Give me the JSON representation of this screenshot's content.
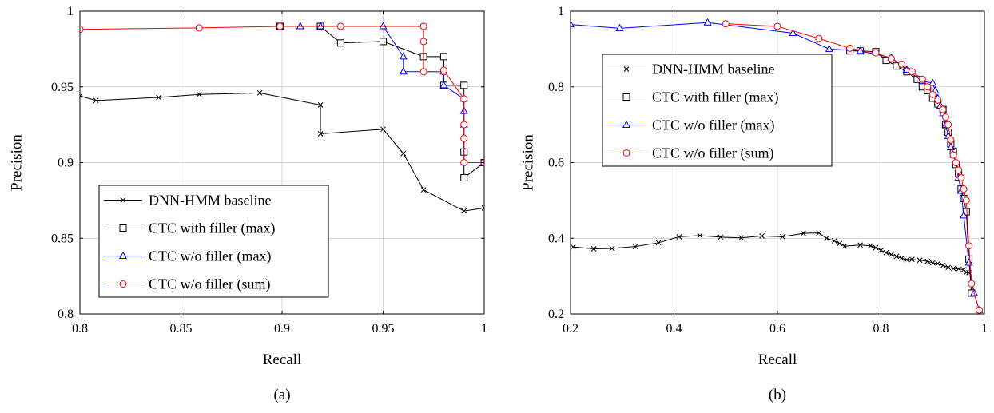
{
  "chart_data": [
    {
      "type": "line",
      "caption": "(a)",
      "xlabel": "Recall",
      "ylabel": "Precision",
      "xlim": [
        0.8,
        1.0
      ],
      "ylim": [
        0.8,
        1.0
      ],
      "xticks": [
        0.8,
        0.85,
        0.9,
        0.95,
        1.0
      ],
      "xtick_labels": [
        "0.8",
        "0.85",
        "0.9",
        "0.95",
        "1"
      ],
      "yticks": [
        0.8,
        0.85,
        0.9,
        0.95,
        1.0
      ],
      "ytick_labels": [
        "0.8",
        "0.85",
        "0.9",
        "0.95",
        "1"
      ],
      "grid": true,
      "legend_position": "bottom-left",
      "series": [
        {
          "name": "DNN-HMM baseline",
          "color": "#000000",
          "marker": "x",
          "x": [
            0.8,
            0.808,
            0.839,
            0.859,
            0.889,
            0.919,
            0.919,
            0.95,
            0.96,
            0.97,
            0.99,
            1.0
          ],
          "y": [
            0.944,
            0.941,
            0.943,
            0.945,
            0.946,
            0.938,
            0.919,
            0.922,
            0.906,
            0.882,
            0.868,
            0.87
          ]
        },
        {
          "name": "CTC with filler (max)",
          "color": "#000000",
          "marker": "square",
          "x": [
            0.899,
            0.919,
            0.929,
            0.95,
            0.97,
            0.98,
            0.98,
            0.99,
            0.99,
            0.99,
            1.0
          ],
          "y": [
            0.99,
            0.99,
            0.979,
            0.98,
            0.97,
            0.97,
            0.951,
            0.951,
            0.907,
            0.89,
            0.9
          ]
        },
        {
          "name": "CTC w/o filler (max)",
          "color": "#0000ff",
          "marker": "triangle",
          "x": [
            0.899,
            0.909,
            0.919,
            0.95,
            0.96,
            0.96,
            0.98,
            0.98,
            0.99,
            0.99,
            0.99,
            0.99,
            1.0
          ],
          "y": [
            0.99,
            0.99,
            0.99,
            0.99,
            0.97,
            0.96,
            0.96,
            0.951,
            0.942,
            0.934,
            0.925,
            0.9,
            0.9
          ]
        },
        {
          "name": "CTC w/o filler (sum)",
          "color": "#ff0000",
          "marker": "circle",
          "x": [
            0.8,
            0.859,
            0.899,
            0.929,
            0.97,
            0.97,
            0.97,
            0.98,
            0.98,
            0.99,
            0.99,
            0.99,
            0.99,
            1.0
          ],
          "y": [
            0.988,
            0.989,
            0.99,
            0.99,
            0.99,
            0.98,
            0.96,
            0.96,
            0.961,
            0.942,
            0.925,
            0.916,
            0.9,
            0.9
          ]
        }
      ]
    },
    {
      "type": "line",
      "caption": "(b)",
      "xlabel": "Recall",
      "ylabel": "Precision",
      "xlim": [
        0.2,
        1.0
      ],
      "ylim": [
        0.2,
        1.0
      ],
      "xticks": [
        0.2,
        0.4,
        0.6,
        0.8,
        1.0
      ],
      "xtick_labels": [
        "0.2",
        "0.4",
        "0.6",
        "0.8",
        "1"
      ],
      "yticks": [
        0.2,
        0.4,
        0.6,
        0.8,
        1.0
      ],
      "ytick_labels": [
        "0.2",
        "0.4",
        "0.6",
        "0.8",
        "1"
      ],
      "grid": true,
      "legend_position": "top-left",
      "series": [
        {
          "name": "DNN-HMM baseline",
          "color": "#000000",
          "marker": "x",
          "x": [
            0.205,
            0.245,
            0.28,
            0.325,
            0.37,
            0.41,
            0.45,
            0.49,
            0.53,
            0.57,
            0.61,
            0.65,
            0.68,
            0.695,
            0.71,
            0.72,
            0.73,
            0.76,
            0.78,
            0.79,
            0.8,
            0.81,
            0.82,
            0.83,
            0.84,
            0.85,
            0.86,
            0.875,
            0.89,
            0.9,
            0.91,
            0.92,
            0.93,
            0.94,
            0.95,
            0.96,
            0.965,
            0.97
          ],
          "y": [
            0.377,
            0.372,
            0.373,
            0.378,
            0.388,
            0.404,
            0.407,
            0.403,
            0.401,
            0.406,
            0.404,
            0.413,
            0.414,
            0.4,
            0.393,
            0.386,
            0.379,
            0.382,
            0.38,
            0.375,
            0.368,
            0.362,
            0.357,
            0.352,
            0.347,
            0.343,
            0.344,
            0.342,
            0.339,
            0.335,
            0.333,
            0.328,
            0.323,
            0.32,
            0.319,
            0.317,
            0.31,
            0.309
          ]
        },
        {
          "name": "CTC with filler (max)",
          "color": "#000000",
          "marker": "square",
          "x": [
            0.74,
            0.76,
            0.79,
            0.81,
            0.83,
            0.85,
            0.87,
            0.88,
            0.89,
            0.9,
            0.91,
            0.92,
            0.925,
            0.93,
            0.935,
            0.94,
            0.945,
            0.95,
            0.955,
            0.96,
            0.965,
            0.97,
            0.975
          ],
          "y": [
            0.895,
            0.895,
            0.893,
            0.87,
            0.855,
            0.84,
            0.82,
            0.8,
            0.79,
            0.77,
            0.755,
            0.74,
            0.7,
            0.68,
            0.65,
            0.63,
            0.595,
            0.57,
            0.53,
            0.505,
            0.47,
            0.345,
            0.255
          ]
        },
        {
          "name": "CTC w/o filler (max)",
          "color": "#0000ff",
          "marker": "triangle",
          "x": [
            0.2,
            0.295,
            0.465,
            0.63,
            0.7,
            0.76,
            0.82,
            0.85,
            0.88,
            0.9,
            0.905,
            0.91,
            0.915,
            0.92,
            0.925,
            0.93,
            0.935,
            0.94,
            0.945,
            0.95,
            0.955,
            0.96,
            0.97,
            0.98,
            0.99
          ],
          "y": [
            0.965,
            0.955,
            0.97,
            0.942,
            0.9,
            0.895,
            0.877,
            0.845,
            0.815,
            0.81,
            0.79,
            0.77,
            0.75,
            0.73,
            0.7,
            0.67,
            0.64,
            0.62,
            0.6,
            0.56,
            0.525,
            0.46,
            0.335,
            0.255,
            0.21
          ]
        },
        {
          "name": "CTC w/o filler (sum)",
          "color": "#ff0000",
          "marker": "circle",
          "x": [
            0.5,
            0.6,
            0.68,
            0.74,
            0.79,
            0.82,
            0.84,
            0.86,
            0.88,
            0.89,
            0.9,
            0.91,
            0.92,
            0.925,
            0.93,
            0.935,
            0.94,
            0.945,
            0.95,
            0.955,
            0.96,
            0.965,
            0.97,
            0.975,
            0.99
          ],
          "y": [
            0.967,
            0.96,
            0.928,
            0.902,
            0.89,
            0.875,
            0.86,
            0.84,
            0.82,
            0.8,
            0.78,
            0.765,
            0.74,
            0.72,
            0.7,
            0.66,
            0.62,
            0.6,
            0.58,
            0.56,
            0.53,
            0.5,
            0.38,
            0.28,
            0.21
          ]
        }
      ]
    }
  ]
}
